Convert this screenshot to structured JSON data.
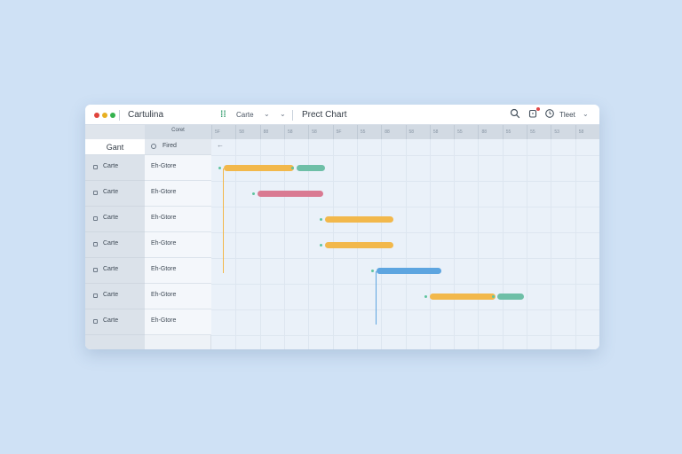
{
  "window": {
    "app_title": "Cartulina",
    "view_label": "Carte",
    "project_title": "Prect Chart",
    "user_label": "Tleet",
    "traffic_lights": [
      "#e0443c",
      "#e8b022",
      "#35b24e"
    ],
    "toolbar_icons": [
      "search-icon",
      "bell-icon",
      "clock-icon",
      "chevron-down-icon"
    ]
  },
  "grid": {
    "header_title": "Coret",
    "left_header": "Gant",
    "mid_header": "Fired",
    "timeline_header_cells": [
      "5F",
      "58",
      "88",
      "58",
      "58",
      "5F",
      "55",
      "88",
      "58",
      "58",
      "55",
      "88",
      "55",
      "55",
      "53",
      "58"
    ],
    "rows": [
      {
        "left": "Carte",
        "mid": "Eh-Gtore"
      },
      {
        "left": "Carte",
        "mid": "Eh-Gtore"
      },
      {
        "left": "Carte",
        "mid": "Eh-Gtore"
      },
      {
        "left": "Carte",
        "mid": "Eh-Gtore"
      },
      {
        "left": "Carte",
        "mid": "Eh-Gtore"
      },
      {
        "left": "Carte",
        "mid": "Eh-Gtore"
      },
      {
        "left": "Carte",
        "mid": "Eh-Gtore"
      }
    ]
  },
  "tasks": [
    {
      "row": 0,
      "start": 0.5,
      "end": 3.4,
      "color": "#f2b84b"
    },
    {
      "row": 0,
      "start": 3.5,
      "end": 4.7,
      "color": "#6ebfa7"
    },
    {
      "row": 1,
      "start": 1.9,
      "end": 4.6,
      "color": "#d97a92"
    },
    {
      "row": 2,
      "start": 4.7,
      "end": 7.5,
      "color": "#f2b84b"
    },
    {
      "row": 3,
      "start": 4.7,
      "end": 7.5,
      "color": "#f2b84b"
    },
    {
      "row": 4,
      "start": 6.8,
      "end": 9.5,
      "color": "#5da5e0"
    },
    {
      "row": 5,
      "start": 9.0,
      "end": 11.7,
      "color": "#f2b84b"
    },
    {
      "row": 5,
      "start": 11.8,
      "end": 12.9,
      "color": "#6ebfa7"
    }
  ],
  "dependencies": [
    {
      "from_row": 0,
      "to_row": 4,
      "at": 0.5,
      "color": "#f2b84b"
    },
    {
      "from_row": 4,
      "to_row": 6,
      "at": 6.8,
      "color": "#5da5e0"
    }
  ]
}
